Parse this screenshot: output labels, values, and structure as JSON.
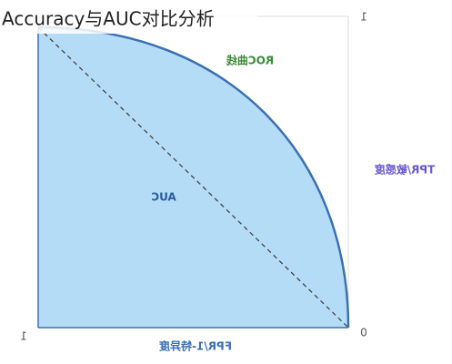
{
  "title": "Accuracy与AUC对比分析",
  "labels": {
    "curve": "ROC曲线",
    "area": "AUC",
    "y_axis": "TPR/敏感度",
    "x_axis": "FPR/1-特异度"
  },
  "ticks": {
    "top_right": "1",
    "bottom_left": "1",
    "bottom_right": "0"
  }
}
